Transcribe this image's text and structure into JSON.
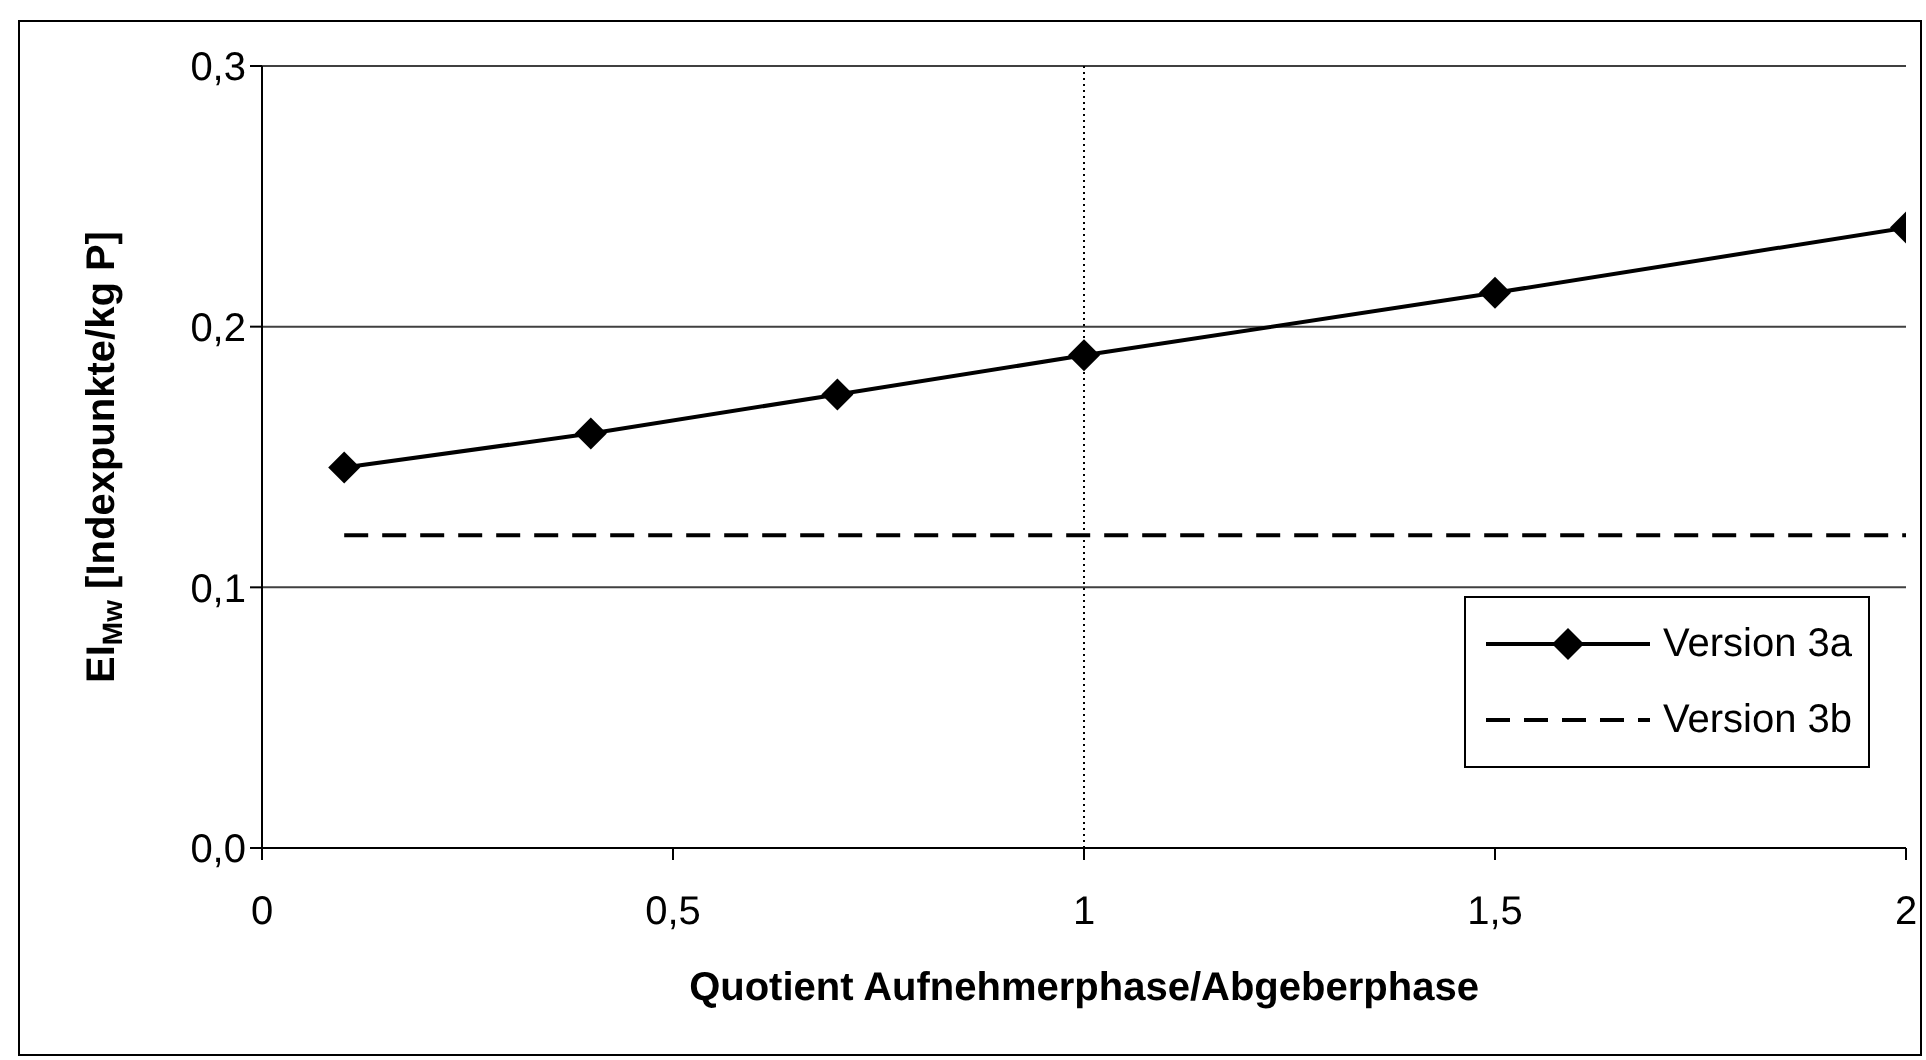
{
  "chart_data": {
    "type": "line",
    "xlabel": "Quotient Aufnehmerphase/Abgeberphase",
    "ylabel": "EI$_{Mw}$ [Indexpunkte/kg P]",
    "xlim": [
      0,
      2
    ],
    "xticks": [
      0,
      {
        "value": 0.5,
        "label": "0,5"
      },
      1,
      {
        "value": 1.5,
        "label": "1,5"
      },
      2
    ],
    "ylim": [
      0,
      0.3
    ],
    "yticks": [
      {
        "value": 0,
        "label": "0,0"
      },
      {
        "value": 0.1,
        "label": "0,1"
      },
      {
        "value": 0.2,
        "label": "0,2"
      },
      {
        "value": 0.3,
        "label": "0,3"
      }
    ],
    "grid": "y",
    "legend": "bottom right",
    "ref_lines": [
      {
        "axis": "x",
        "value": 1,
        "color": "#000000",
        "line_style": "dotted"
      }
    ],
    "series": [
      {
        "name": "Version 3a",
        "color": "#000000",
        "marker": "diamond",
        "line_style": "solid",
        "x": [
          0.1,
          0.4,
          0.7,
          1,
          1.5,
          2
        ],
        "values": [
          0.146,
          0.159,
          0.174,
          0.189,
          0.213,
          0.238
        ]
      },
      {
        "name": "Version 3b",
        "color": "#000000",
        "marker": "none",
        "line_style": "dashed",
        "x": [
          0.1,
          0.4,
          0.7,
          1,
          1.5,
          2
        ],
        "values": [
          0.12,
          0.12,
          0.12,
          0.12,
          0.12,
          0.12
        ]
      }
    ]
  }
}
